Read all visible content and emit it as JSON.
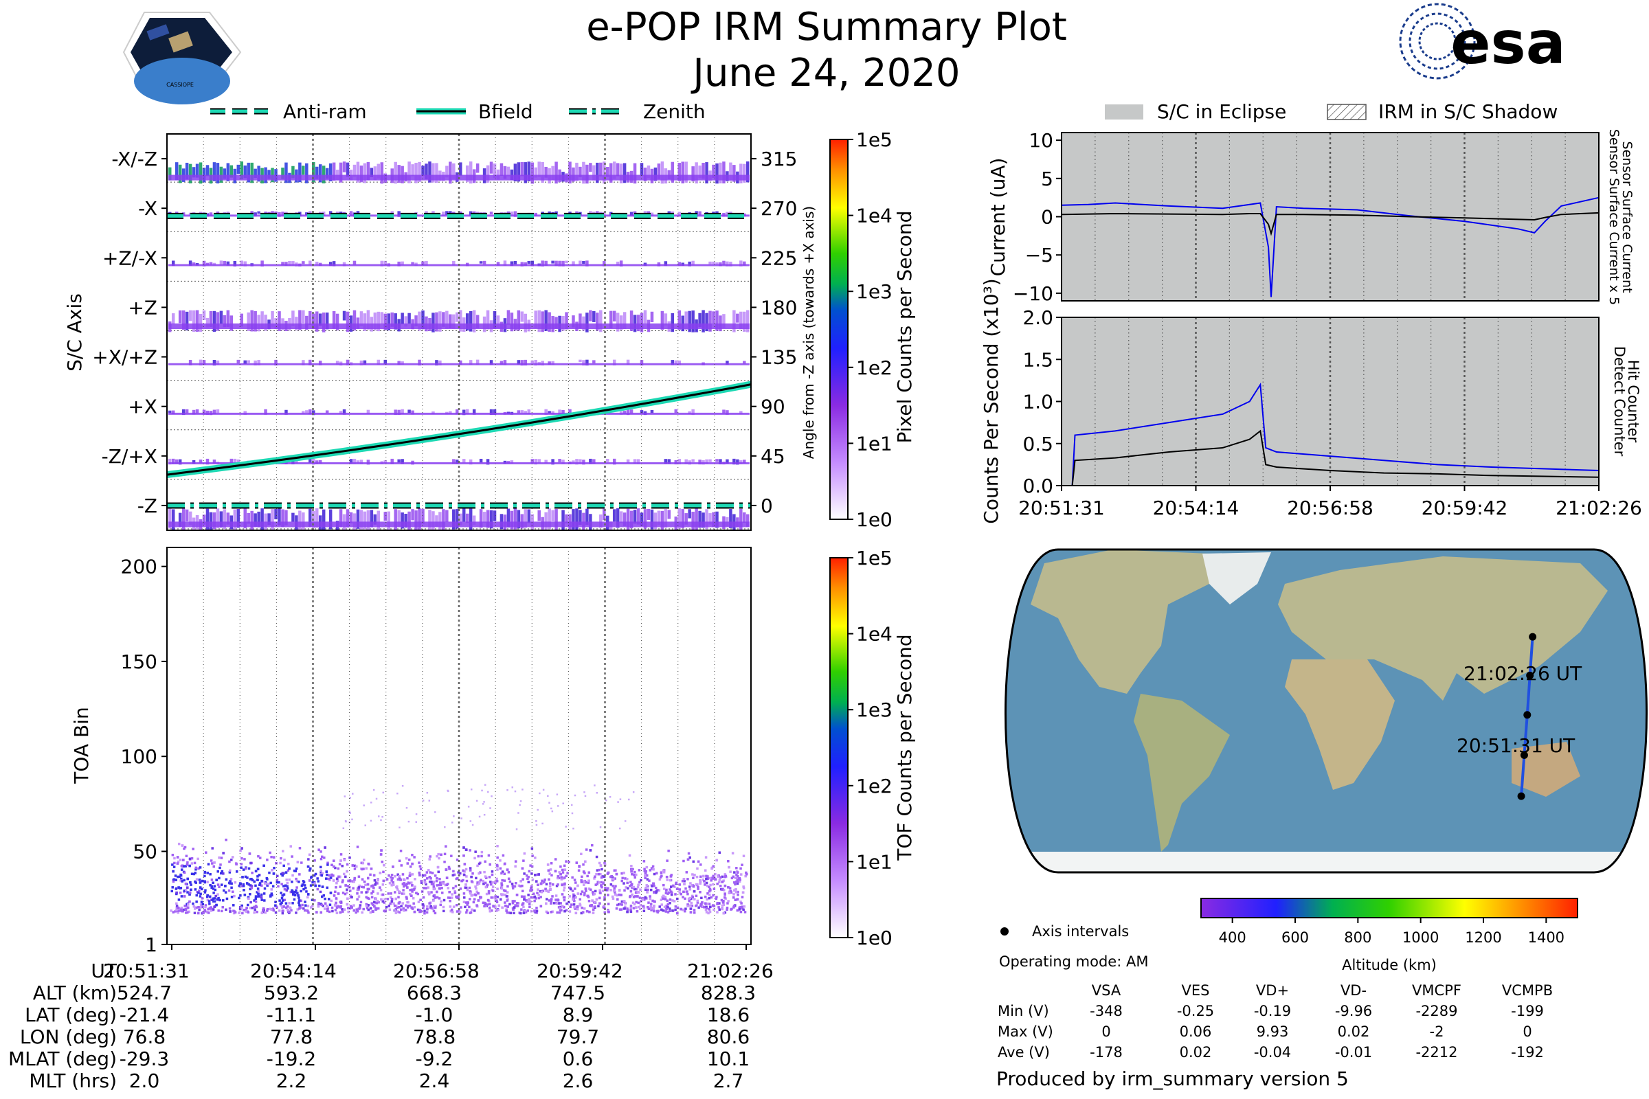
{
  "header": {
    "title": "e-POP IRM Summary Plot",
    "date": "June 24, 2020",
    "logo_left_text": "CASSIOPE",
    "logo_right_text": "esa"
  },
  "colors": {
    "antiram": "#1ed9b4",
    "bfield": "#1ed9b4",
    "sensor_current": "#0000ee",
    "detect_counter": "#0000ee",
    "eclipse_bg": "#c6c8c8",
    "ocean": "#5d93b6",
    "land": "#b9b890"
  },
  "legend_top": [
    {
      "label": "Anti-ram",
      "style": "dashed"
    },
    {
      "label": "Bfield",
      "style": "solid"
    },
    {
      "label": "Zenith",
      "style": "dashdot"
    }
  ],
  "legend_right": [
    {
      "label": "S/C in Eclipse",
      "style": "fill"
    },
    {
      "label": "IRM in S/C Shadow",
      "style": "hatch"
    }
  ],
  "chart_data": [
    {
      "id": "pixel_panel",
      "type": "heatmap",
      "ylabel": "S/C Axis",
      "y_ticks_left": [
        "-X/-Z",
        "-X",
        "+Z/-X",
        "+Z",
        "+X/+Z",
        "+X",
        "-Z/+X",
        "-Z"
      ],
      "y_ticks_right": [
        "315",
        "270",
        "225",
        "180",
        "135",
        "90",
        "45",
        "0"
      ],
      "right_label": "Angle from -Z axis (towards +X axis)",
      "bfield_angle_start": 28,
      "bfield_angle_end": 110,
      "antiram_angle": 263,
      "zenith_angle": 0,
      "colorbar": {
        "label": "Pixel Counts per Second",
        "ticks": [
          "1e5",
          "1e4",
          "1e3",
          "1e2",
          "1e1",
          "1e0"
        ]
      }
    },
    {
      "id": "tof_panel",
      "type": "heatmap",
      "ylabel": "TOA Bin",
      "ylim": [
        1,
        210
      ],
      "y_ticks": [
        "200",
        "150",
        "100",
        "50",
        "1"
      ],
      "x_ticks": [
        "20:51:31",
        "20:54:14",
        "20:56:58",
        "20:59:42",
        "21:02:26"
      ],
      "band_center": 30,
      "colorbar": {
        "label": "TOF Counts per Second",
        "ticks": [
          "1e5",
          "1e4",
          "1e3",
          "1e2",
          "1e1",
          "1e0"
        ]
      }
    },
    {
      "id": "current_panel",
      "type": "line",
      "ylabel": "Current (uA)",
      "ylim": [
        -11,
        11
      ],
      "y_ticks": [
        "10",
        "5",
        "0",
        "−5",
        "−10"
      ],
      "right_label_blue": "Sensor Surface Current x 5",
      "right_label_black": "Sensor Surface Current",
      "x": [
        0,
        0.05,
        0.1,
        0.2,
        0.3,
        0.35,
        0.37,
        0.385,
        0.39,
        0.4,
        0.45,
        0.55,
        0.65,
        0.75,
        0.85,
        0.88,
        0.9,
        0.93,
        1.0
      ],
      "series": [
        {
          "name": "Sensor Surface Current x 5",
          "values": [
            1.5,
            1.6,
            1.8,
            1.4,
            1.1,
            1.6,
            1.8,
            -4,
            -10.5,
            1.3,
            1.1,
            0.9,
            0.1,
            -0.6,
            -1.6,
            -2.1,
            -0.6,
            1.4,
            2.5
          ]
        },
        {
          "name": "Sensor Surface Current",
          "values": [
            0.3,
            0.35,
            0.4,
            0.35,
            0.3,
            0.4,
            0.4,
            -1.0,
            -2.2,
            0.3,
            0.3,
            0.2,
            0.0,
            -0.15,
            -0.35,
            -0.4,
            -0.1,
            0.3,
            0.5
          ]
        }
      ]
    },
    {
      "id": "counts_panel",
      "type": "line",
      "ylabel": "Counts Per Second (x10³)",
      "ylim": [
        0,
        2
      ],
      "y_ticks": [
        "2.0",
        "1.5",
        "1.0",
        "0.5",
        "0.0"
      ],
      "x_ticks": [
        "20:51:31",
        "20:54:14",
        "20:56:58",
        "20:59:42",
        "21:02:26"
      ],
      "right_label_blue": "Detect Counter",
      "right_label_black": "Hit Counter",
      "x": [
        0,
        0.02,
        0.025,
        0.1,
        0.2,
        0.3,
        0.35,
        0.37,
        0.38,
        0.4,
        0.5,
        0.6,
        0.7,
        0.8,
        0.9,
        1.0
      ],
      "series": [
        {
          "name": "Detect Counter",
          "values": [
            0.0,
            0.0,
            0.6,
            0.65,
            0.75,
            0.85,
            1.0,
            1.2,
            0.45,
            0.4,
            0.35,
            0.3,
            0.25,
            0.22,
            0.2,
            0.18
          ]
        },
        {
          "name": "Hit Counter",
          "values": [
            0.0,
            0.0,
            0.3,
            0.33,
            0.4,
            0.45,
            0.55,
            0.65,
            0.25,
            0.22,
            0.18,
            0.15,
            0.14,
            0.12,
            0.11,
            0.1
          ]
        }
      ]
    },
    {
      "id": "altitude_colorbar",
      "type": "heatmap",
      "xlabel": "Altitude (km)",
      "xlim": [
        300,
        1500
      ],
      "x_ticks": [
        "400",
        "600",
        "800",
        "1000",
        "1200",
        "1400"
      ]
    }
  ],
  "map": {
    "start_label": "20:51:31 UT",
    "end_label": "21:02:26 UT",
    "track": [
      {
        "lon": 76.8,
        "lat": -21.4
      },
      {
        "lon": 77.8,
        "lat": -11.1
      },
      {
        "lon": 78.8,
        "lat": -1.0
      },
      {
        "lon": 79.7,
        "lat": 8.9
      },
      {
        "lon": 80.6,
        "lat": 18.6
      }
    ]
  },
  "ephemeris": {
    "labels": [
      "UT",
      "ALT (km)",
      "LAT (deg)",
      "LON (deg)",
      "MLAT (deg)",
      "MLT (hrs)"
    ],
    "columns": [
      [
        "20:51:31",
        "524.7",
        "-21.4",
        "76.8",
        "-29.3",
        "2.0"
      ],
      [
        "20:54:14",
        "593.2",
        "-11.1",
        "77.8",
        "-19.2",
        "2.2"
      ],
      [
        "20:56:58",
        "668.3",
        "-1.0",
        "78.8",
        "-9.2",
        "2.4"
      ],
      [
        "20:59:42",
        "747.5",
        "8.9",
        "79.7",
        "0.6",
        "2.6"
      ],
      [
        "21:02:26",
        "828.3",
        "18.6",
        "80.6",
        "10.1",
        "2.7"
      ]
    ]
  },
  "info": {
    "axis_intervals": "Axis intervals",
    "operating_mode": "Operating mode: AM",
    "produced_by": "Produced by irm_summary version 5"
  },
  "voltages": {
    "headers": [
      "VSA",
      "VES",
      "VD+",
      "VD-",
      "VMCPF",
      "VCMPB"
    ],
    "rows": [
      {
        "label": "Min (V)",
        "values": [
          "-348",
          "-0.25",
          "-0.19",
          "-9.96",
          "-2289",
          "-199"
        ]
      },
      {
        "label": "Max (V)",
        "values": [
          "0",
          "0.06",
          "9.93",
          "0.02",
          "-2",
          "0"
        ]
      },
      {
        "label": "Ave (V)",
        "values": [
          "-178",
          "0.02",
          "-0.04",
          "-0.01",
          "-2212",
          "-192"
        ]
      }
    ]
  }
}
